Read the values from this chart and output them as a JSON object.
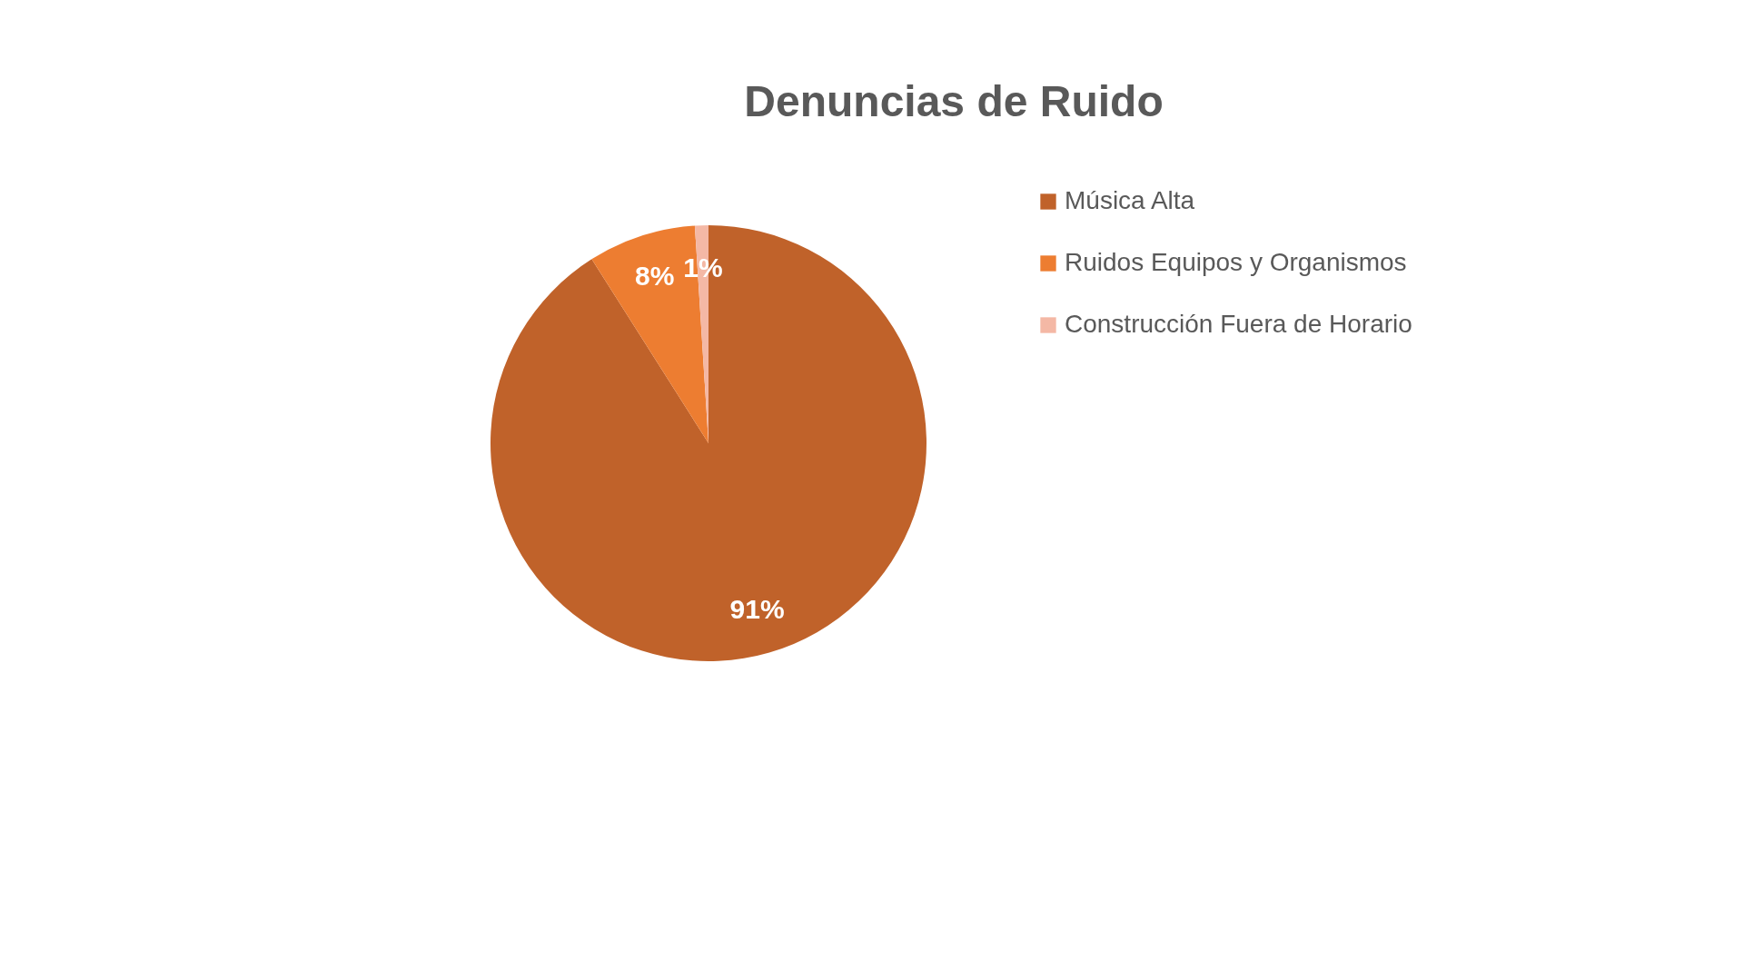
{
  "chart_data": {
    "type": "pie",
    "title": "Denuncias de Ruido",
    "categories": [
      "Música Alta",
      "Ruidos Equipos y Organismos",
      "Construcción Fuera de Horario"
    ],
    "values": [
      91,
      8,
      1
    ],
    "colors": [
      "#c0622a",
      "#ed7d31",
      "#f4b8a5"
    ],
    "value_labels": [
      "91%",
      "8%",
      "1%"
    ],
    "legend": "right"
  }
}
